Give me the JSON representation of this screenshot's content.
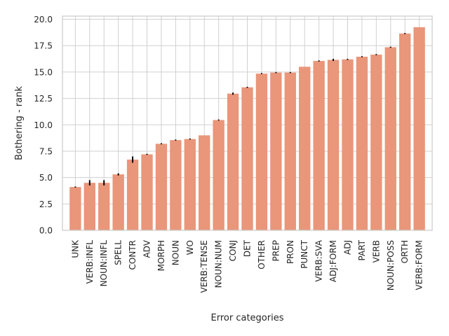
{
  "chart_data": {
    "type": "bar",
    "title": "",
    "xlabel": "Error categories",
    "ylabel": "Bothering - rank",
    "ylim": [
      0,
      20.3
    ],
    "yticks": [
      "0.0",
      "2.5",
      "5.0",
      "7.5",
      "10.0",
      "12.5",
      "15.0",
      "17.5",
      "20.0"
    ],
    "grid": true,
    "bar_color": "#e9967a",
    "error_color": "#000000",
    "categories": [
      "UNK",
      "VERB:INFL",
      "NOUN:INFL",
      "SPELL",
      "CONTR",
      "ADV",
      "MORPH",
      "NOUN",
      "WO",
      "VERB:TENSE",
      "NOUN:NUM",
      "CONJ",
      "DET",
      "OTHER",
      "PREP",
      "PRON",
      "PUNCT",
      "VERB:SVA",
      "ADJ:FORM",
      "ADJ",
      "PART",
      "VERB",
      "NOUN:POSS",
      "ORTH",
      "VERB:FORM"
    ],
    "values": [
      4.1,
      4.5,
      4.5,
      5.3,
      6.7,
      7.2,
      8.2,
      8.55,
      8.65,
      9.0,
      10.45,
      12.95,
      13.55,
      14.85,
      14.95,
      14.95,
      15.5,
      16.05,
      16.15,
      16.2,
      16.45,
      16.65,
      17.35,
      18.65,
      19.25
    ],
    "errors": [
      0.05,
      0.25,
      0.25,
      0.1,
      0.3,
      0.05,
      0.05,
      0.05,
      0.05,
      0.0,
      0.05,
      0.1,
      0.05,
      0.05,
      0.05,
      0.05,
      0.0,
      0.05,
      0.1,
      0.05,
      0.05,
      0.05,
      0.05,
      0.05,
      0.0
    ]
  }
}
